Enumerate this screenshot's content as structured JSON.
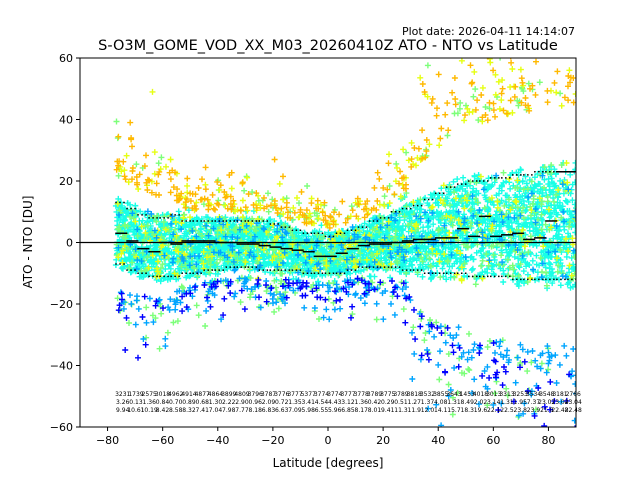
{
  "plot_date": "Plot date: 2026-04-11 14:14:07",
  "chart_data": {
    "type": "scatter",
    "title": "S-O3M_GOME_VOD_XX_M03_20260410Z ATO - NTO vs Latitude",
    "xlabel": "Latitude [degrees]",
    "ylabel": "ATO - NTO [DU]",
    "xlim": [
      -90,
      90
    ],
    "ylim": [
      -60,
      60
    ],
    "xticks": [
      -80,
      -60,
      -40,
      -20,
      0,
      20,
      40,
      60,
      80
    ],
    "yticks": [
      -60,
      -40,
      -20,
      0,
      20,
      40,
      60
    ],
    "grid": false,
    "marker": "+",
    "colormap": [
      "#0000ff",
      "#00a5ff",
      "#19ffe6",
      "#7cff79",
      "#e6ff13",
      "#ffb900"
    ],
    "reference_line_y": 0,
    "band_centers_lat": [
      -75,
      -71,
      -67,
      -63,
      -59,
      -55,
      -51,
      -47,
      -43,
      -39,
      -35,
      -31,
      -27,
      -23,
      -19,
      -15,
      -11,
      -7,
      -3,
      1,
      5,
      9,
      13,
      17,
      21,
      25,
      29,
      33,
      37,
      41,
      45,
      49,
      53,
      57,
      61,
      65,
      69,
      73,
      77,
      81,
      85,
      89
    ],
    "mean_bias": [
      3,
      0.5,
      -2,
      -3,
      0,
      -0.5,
      0.5,
      0.5,
      0.5,
      0,
      0,
      -0.5,
      -0.5,
      -1,
      -1.5,
      -2,
      -2.5,
      -3,
      -4.5,
      -4.5,
      -3.5,
      -2,
      -1,
      -0.5,
      -0.5,
      0,
      0.5,
      1,
      1,
      1.5,
      1.5,
      4.5,
      2,
      8.5,
      2,
      2.5,
      3,
      1,
      1.5,
      7,
      23,
      23
    ],
    "std_upper": [
      13,
      11,
      9,
      8,
      8,
      9,
      7,
      7,
      7,
      7,
      7,
      7,
      7,
      7,
      6,
      5,
      4,
      3,
      3,
      2,
      3,
      4,
      5,
      7,
      8,
      10,
      11,
      12,
      14,
      16,
      18,
      19,
      20,
      20,
      21,
      21,
      22,
      22,
      23,
      23,
      23,
      23
    ],
    "std_lower": [
      -7,
      -9,
      -10,
      -11,
      -11,
      -11,
      -10,
      -10,
      -9,
      -9,
      -8,
      -8,
      -8,
      -9,
      -9,
      -9,
      -9,
      -10,
      -10,
      -10,
      -10,
      -9,
      -8,
      -8,
      -8,
      -8,
      -9,
      -9,
      -10,
      -10,
      -10,
      -10,
      -11,
      -11,
      -11,
      -11,
      -12,
      -12,
      -12,
      -12,
      -12,
      -12
    ],
    "band_stats": [
      [
        "3231",
        "3.26",
        "9.94"
      ],
      [
        "1739",
        "0.13",
        "10.61"
      ],
      [
        "2575",
        "1.36",
        "10.19"
      ],
      [
        "3018",
        "0.84",
        "8.42"
      ],
      [
        "4962",
        "0.70",
        "8.58"
      ],
      [
        "4914",
        "0.89",
        "8.32"
      ],
      [
        "4877",
        "0.68",
        "7.41"
      ],
      [
        "4864",
        "1.30",
        "7.04"
      ],
      [
        "3899",
        "2.22",
        "7.98"
      ],
      [
        "4809",
        "2.90",
        "7.77"
      ],
      [
        "3796",
        "0.96",
        "8.18"
      ],
      [
        "3787",
        "2.09",
        "6.83"
      ],
      [
        "3776",
        "0.72",
        "6.63"
      ],
      [
        "3777",
        "1.35",
        "7.09"
      ],
      [
        "5377",
        "3.41",
        "5.98"
      ],
      [
        "3774",
        "4.54",
        "6.55"
      ],
      [
        "3774",
        "4.43",
        "5.96"
      ],
      [
        "3777",
        "3.12",
        "6.85"
      ],
      [
        "3778",
        "1.36",
        "8.17"
      ],
      [
        "3789",
        "0.42",
        "8.01"
      ],
      [
        "3775",
        "0.29",
        "9.41"
      ],
      [
        "3789",
        "0.51",
        "11.3"
      ],
      [
        "3818",
        "1.27",
        "11.9"
      ],
      [
        "3532",
        "1.37",
        "12.0"
      ],
      [
        "3855",
        "4.08",
        "14.1"
      ],
      [
        "3643",
        "1.31",
        "15.7"
      ],
      [
        "1453",
        "8.49",
        "18.3"
      ],
      [
        "4018",
        "2.02",
        "19.6"
      ],
      [
        "3013",
        "3.14",
        "22.1"
      ],
      [
        "3313",
        "1.31",
        "22.5"
      ],
      [
        "3253",
        "1.95",
        "23.8"
      ],
      [
        "3534",
        "7.37",
        "23.9"
      ],
      [
        "3548",
        "23.07",
        "21.0"
      ],
      [
        "3181",
        "23.04",
        "22.48"
      ],
      [
        "2766",
        "23.04",
        "22.48"
      ]
    ]
  }
}
